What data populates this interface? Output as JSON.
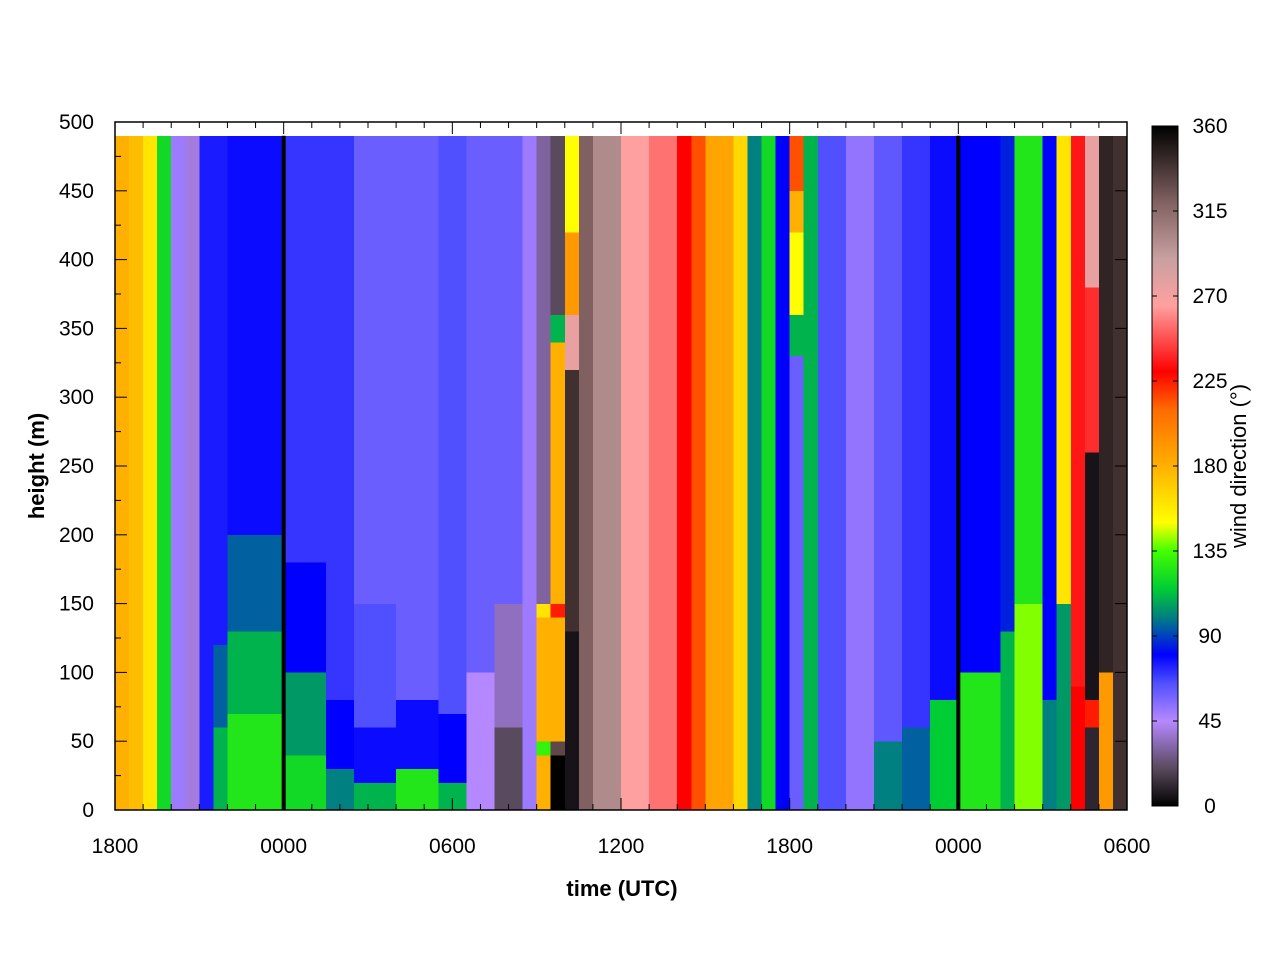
{
  "chart_data": {
    "type": "heatmap",
    "xlabel": "time (UTC)",
    "ylabel": "height (m)",
    "colorbar_label": "wind direction (°)",
    "x_tick_labels": [
      "1800",
      "0000",
      "0600",
      "1200",
      "1800",
      "0000",
      "0600"
    ],
    "xlim_hours": [
      0,
      36
    ],
    "x_tick_hours": [
      0,
      6,
      12,
      18,
      24,
      30,
      36
    ],
    "y_ticks": [
      0,
      50,
      100,
      150,
      200,
      250,
      300,
      350,
      400,
      450,
      500
    ],
    "ylim": [
      0,
      500
    ],
    "colorbar_ticks": [
      0,
      45,
      90,
      135,
      180,
      225,
      270,
      315,
      360
    ],
    "colorbar_range": [
      0,
      360
    ],
    "midnight_markers_hours": [
      6,
      30
    ],
    "time_step_hours": 0.5,
    "height_step_m": 10,
    "height_max_m": 490,
    "grid": false,
    "colormap_stops": [
      [
        0,
        "#000000"
      ],
      [
        20,
        "#5a4a5e"
      ],
      [
        45,
        "#b688ff"
      ],
      [
        65,
        "#5050ff"
      ],
      [
        80,
        "#0000ff"
      ],
      [
        100,
        "#008080"
      ],
      [
        115,
        "#00cc33"
      ],
      [
        135,
        "#44ff00"
      ],
      [
        150,
        "#ffff00"
      ],
      [
        180,
        "#ffb000"
      ],
      [
        210,
        "#ff6a00"
      ],
      [
        230,
        "#ff0000"
      ],
      [
        265,
        "#ffa0a0"
      ],
      [
        290,
        "#c8a0a0"
      ],
      [
        320,
        "#806060"
      ],
      [
        360,
        "#000000"
      ]
    ],
    "profiles": [
      {
        "t": [
          0,
          0.5
        ],
        "segments": [
          [
            0,
            500,
            180
          ]
        ]
      },
      {
        "t": [
          0.5,
          1.0
        ],
        "segments": [
          [
            0,
            500,
            175
          ]
        ]
      },
      {
        "t": [
          1.0,
          1.5
        ],
        "segments": [
          [
            0,
            500,
            160
          ]
        ]
      },
      {
        "t": [
          1.5,
          2.0
        ],
        "segments": [
          [
            0,
            500,
            120
          ]
        ]
      },
      {
        "t": [
          2.0,
          2.5
        ],
        "segments": [
          [
            0,
            500,
            50
          ]
        ]
      },
      {
        "t": [
          2.5,
          3.0
        ],
        "segments": [
          [
            0,
            500,
            40
          ]
        ]
      },
      {
        "t": [
          3.0,
          3.5
        ],
        "segments": [
          [
            0,
            500,
            75
          ]
        ]
      },
      {
        "t": [
          3.5,
          4.0
        ],
        "segments": [
          [
            0,
            60,
            110
          ],
          [
            60,
            120,
            95
          ],
          [
            120,
            500,
            75
          ]
        ]
      },
      {
        "t": [
          4.0,
          6.0
        ],
        "segments": [
          [
            0,
            70,
            125
          ],
          [
            70,
            130,
            110
          ],
          [
            130,
            200,
            95
          ],
          [
            200,
            500,
            78
          ]
        ]
      },
      {
        "t": [
          6.0,
          7.5
        ],
        "segments": [
          [
            0,
            40,
            120
          ],
          [
            40,
            100,
            105
          ],
          [
            100,
            180,
            80
          ],
          [
            180,
            500,
            70
          ]
        ]
      },
      {
        "t": [
          7.5,
          8.5
        ],
        "segments": [
          [
            0,
            30,
            100
          ],
          [
            30,
            80,
            80
          ],
          [
            80,
            500,
            70
          ]
        ]
      },
      {
        "t": [
          8.5,
          10.0
        ],
        "segments": [
          [
            0,
            20,
            110
          ],
          [
            20,
            60,
            78
          ],
          [
            60,
            150,
            65
          ],
          [
            150,
            500,
            60
          ]
        ]
      },
      {
        "t": [
          10.0,
          11.5
        ],
        "segments": [
          [
            0,
            30,
            125
          ],
          [
            30,
            80,
            78
          ],
          [
            80,
            500,
            60
          ]
        ]
      },
      {
        "t": [
          11.5,
          12.5
        ],
        "segments": [
          [
            0,
            20,
            110
          ],
          [
            20,
            70,
            80
          ],
          [
            70,
            500,
            65
          ]
        ]
      },
      {
        "t": [
          12.5,
          13.5
        ],
        "segments": [
          [
            0,
            100,
            45
          ],
          [
            100,
            500,
            60
          ]
        ]
      },
      {
        "t": [
          13.5,
          14.5
        ],
        "segments": [
          [
            0,
            60,
            20
          ],
          [
            60,
            150,
            35
          ],
          [
            150,
            500,
            60
          ]
        ]
      },
      {
        "t": [
          14.5,
          15.0
        ],
        "segments": [
          [
            0,
            500,
            50
          ]
        ]
      },
      {
        "t": [
          15.0,
          15.5
        ],
        "segments": [
          [
            0,
            40,
            180
          ],
          [
            40,
            50,
            130
          ],
          [
            50,
            140,
            180
          ],
          [
            140,
            150,
            160
          ],
          [
            150,
            500,
            30
          ]
        ]
      },
      {
        "t": [
          15.5,
          16.0
        ],
        "segments": [
          [
            0,
            40,
            0
          ],
          [
            40,
            50,
            330
          ],
          [
            50,
            140,
            180
          ],
          [
            140,
            150,
            225
          ],
          [
            150,
            340,
            180
          ],
          [
            340,
            360,
            110
          ],
          [
            360,
            500,
            20
          ]
        ]
      },
      {
        "t": [
          16.0,
          16.5
        ],
        "segments": [
          [
            0,
            130,
            5
          ],
          [
            130,
            320,
            340
          ],
          [
            320,
            360,
            275
          ],
          [
            360,
            420,
            190
          ],
          [
            420,
            500,
            150
          ]
        ]
      },
      {
        "t": [
          16.5,
          17.0
        ],
        "segments": [
          [
            0,
            500,
            320
          ]
        ]
      },
      {
        "t": [
          17.0,
          18.0
        ],
        "segments": [
          [
            0,
            500,
            300
          ]
        ]
      },
      {
        "t": [
          18.0,
          19.0
        ],
        "segments": [
          [
            0,
            500,
            265
          ]
        ]
      },
      {
        "t": [
          19.0,
          20.0
        ],
        "segments": [
          [
            0,
            500,
            255
          ]
        ]
      },
      {
        "t": [
          20.0,
          20.5
        ],
        "segments": [
          [
            0,
            500,
            230
          ]
        ]
      },
      {
        "t": [
          20.5,
          21.0
        ],
        "segments": [
          [
            0,
            500,
            215
          ]
        ]
      },
      {
        "t": [
          21.0,
          22.0
        ],
        "segments": [
          [
            0,
            500,
            185
          ]
        ]
      },
      {
        "t": [
          22.0,
          22.5
        ],
        "segments": [
          [
            0,
            500,
            165
          ]
        ]
      },
      {
        "t": [
          22.5,
          23.0
        ],
        "segments": [
          [
            0,
            500,
            100
          ]
        ]
      },
      {
        "t": [
          23.0,
          23.5
        ],
        "segments": [
          [
            0,
            500,
            120
          ]
        ]
      },
      {
        "t": [
          23.5,
          24.0
        ],
        "segments": [
          [
            0,
            500,
            80
          ]
        ]
      },
      {
        "t": [
          24.0,
          24.5
        ],
        "segments": [
          [
            0,
            330,
            60
          ],
          [
            330,
            360,
            110
          ],
          [
            360,
            420,
            150
          ],
          [
            420,
            450,
            180
          ],
          [
            450,
            500,
            215
          ]
        ]
      },
      {
        "t": [
          24.5,
          25.0
        ],
        "segments": [
          [
            0,
            500,
            110
          ]
        ]
      },
      {
        "t": [
          25.0,
          26.0
        ],
        "segments": [
          [
            0,
            500,
            65
          ]
        ]
      },
      {
        "t": [
          26.0,
          27.0
        ],
        "segments": [
          [
            0,
            500,
            52
          ]
        ]
      },
      {
        "t": [
          27.0,
          28.0
        ],
        "segments": [
          [
            0,
            50,
            100
          ],
          [
            50,
            500,
            62
          ]
        ]
      },
      {
        "t": [
          28.0,
          29.0
        ],
        "segments": [
          [
            0,
            60,
            95
          ],
          [
            60,
            500,
            70
          ]
        ]
      },
      {
        "t": [
          29.0,
          30.0
        ],
        "segments": [
          [
            0,
            80,
            115
          ],
          [
            80,
            500,
            78
          ]
        ]
      },
      {
        "t": [
          30.0,
          31.5
        ],
        "segments": [
          [
            0,
            100,
            125
          ],
          [
            100,
            500,
            80
          ]
        ]
      },
      {
        "t": [
          31.5,
          32.0
        ],
        "segments": [
          [
            0,
            130,
            110
          ],
          [
            130,
            500,
            85
          ]
        ]
      },
      {
        "t": [
          32.0,
          33.0
        ],
        "segments": [
          [
            0,
            150,
            140
          ],
          [
            150,
            500,
            125
          ]
        ]
      },
      {
        "t": [
          33.0,
          33.5
        ],
        "segments": [
          [
            0,
            80,
            100
          ],
          [
            80,
            500,
            80
          ]
        ]
      },
      {
        "t": [
          33.5,
          34.0
        ],
        "segments": [
          [
            0,
            150,
            105
          ],
          [
            150,
            500,
            160
          ]
        ]
      },
      {
        "t": [
          34.0,
          34.5
        ],
        "segments": [
          [
            0,
            90,
            230
          ],
          [
            90,
            500,
            235
          ]
        ]
      },
      {
        "t": [
          34.5,
          35.0
        ],
        "segments": [
          [
            0,
            60,
            10
          ],
          [
            60,
            80,
            225
          ],
          [
            80,
            260,
            5
          ],
          [
            260,
            380,
            240
          ],
          [
            380,
            500,
            275
          ]
        ]
      },
      {
        "t": [
          35.0,
          35.5
        ],
        "segments": [
          [
            0,
            100,
            190
          ],
          [
            100,
            500,
            345
          ]
        ]
      },
      {
        "t": [
          35.5,
          36.0
        ],
        "segments": [
          [
            0,
            500,
            340
          ]
        ]
      }
    ]
  }
}
